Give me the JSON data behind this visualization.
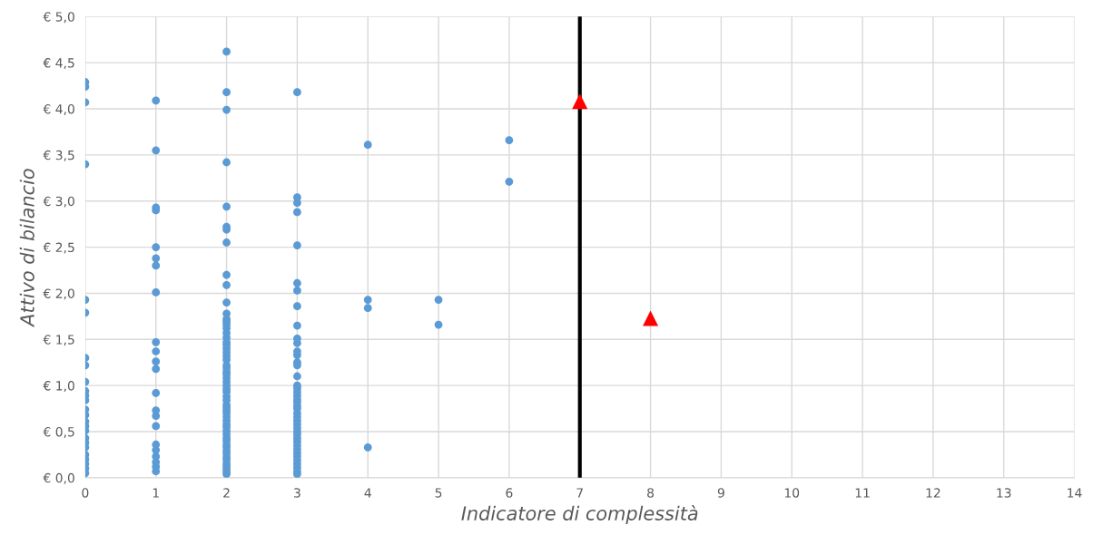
{
  "chart_data": {
    "type": "scatter",
    "xlabel": "Indicatore di complessità",
    "ylabel": "Attivo di bilancio",
    "xlim": [
      0,
      14
    ],
    "xticks": [
      0,
      1,
      2,
      3,
      4,
      5,
      6,
      7,
      8,
      9,
      10,
      11,
      12,
      13,
      14
    ],
    "ylim": [
      0,
      5
    ],
    "yticks": [
      {
        "value": 0,
        "label": "€ 0,0"
      },
      {
        "value": 0.5,
        "label": "€ 0,5"
      },
      {
        "value": 1,
        "label": "€ 1,0"
      },
      {
        "value": 1.5,
        "label": "€ 1,5"
      },
      {
        "value": 2,
        "label": "€ 2,0"
      },
      {
        "value": 2.5,
        "label": "€ 2,5"
      },
      {
        "value": 3,
        "label": "€ 3,0"
      },
      {
        "value": 3.5,
        "label": "€ 3,5"
      },
      {
        "value": 4,
        "label": "€ 4,0"
      },
      {
        "value": 4.5,
        "label": "€ 4,5"
      },
      {
        "value": 5,
        "label": "€ 5,0"
      }
    ],
    "grid": true,
    "legend": false,
    "ref_lines": [
      {
        "axis": "x",
        "value": 7,
        "label": null,
        "color": "#000000"
      }
    ],
    "series": [
      {
        "color": "#5b9bd5",
        "marker": "circle",
        "x": [
          0,
          0,
          0,
          0,
          0,
          0,
          0,
          0,
          0,
          0,
          0,
          0,
          0,
          0,
          0,
          0,
          0,
          0,
          0,
          0,
          0,
          0,
          0,
          0,
          0,
          1,
          1,
          1,
          1,
          1,
          1,
          1,
          1,
          1,
          1,
          1,
          1,
          1,
          1,
          1,
          1,
          1,
          1,
          1,
          1,
          1,
          1,
          2,
          2,
          2,
          2,
          2,
          2,
          2,
          2,
          2,
          2,
          2,
          2,
          2,
          2,
          2,
          2,
          2,
          2,
          2,
          2,
          2,
          2,
          2,
          2,
          2,
          2,
          2,
          2,
          2,
          2,
          2,
          2,
          2,
          2,
          2,
          2,
          2,
          2,
          2,
          2,
          2,
          2,
          2,
          2,
          2,
          2,
          2,
          2,
          2,
          2,
          2,
          2,
          2,
          2,
          2,
          2,
          2,
          2,
          3,
          3,
          3,
          3,
          3,
          3,
          3,
          3,
          3,
          3,
          3,
          3,
          3,
          3,
          3,
          3,
          3,
          3,
          3,
          3,
          3,
          3,
          3,
          3,
          3,
          3,
          3,
          3,
          3,
          3,
          3,
          3,
          3,
          3,
          3,
          3,
          3,
          3,
          3,
          3,
          3,
          3,
          4,
          4,
          4,
          4,
          5,
          5,
          6,
          6
        ],
        "values": [
          4.29,
          4.24,
          4.07,
          3.4,
          1.93,
          1.79,
          1.3,
          1.22,
          1.04,
          0.94,
          0.89,
          0.84,
          0.74,
          0.68,
          0.61,
          0.56,
          0.51,
          0.43,
          0.38,
          0.33,
          0.25,
          0.2,
          0.15,
          0.1,
          0.05,
          4.09,
          3.55,
          2.93,
          2.9,
          2.5,
          2.38,
          2.3,
          2.01,
          1.47,
          1.37,
          1.26,
          1.18,
          0.92,
          0.73,
          0.67,
          0.56,
          0.36,
          0.3,
          0.23,
          0.17,
          0.12,
          0.07,
          4.62,
          4.18,
          3.99,
          3.42,
          2.94,
          2.72,
          2.69,
          2.55,
          2.2,
          2.09,
          1.9,
          1.78,
          1.72,
          1.69,
          1.66,
          1.62,
          1.57,
          1.52,
          1.47,
          1.44,
          1.4,
          1.36,
          1.32,
          1.28,
          1.22,
          1.19,
          1.15,
          1.12,
          1.08,
          1.04,
          1.0,
          0.96,
          0.93,
          0.88,
          0.84,
          0.79,
          0.76,
          0.73,
          0.7,
          0.66,
          0.62,
          0.58,
          0.55,
          0.51,
          0.47,
          0.43,
          0.4,
          0.36,
          0.33,
          0.29,
          0.26,
          0.22,
          0.19,
          0.15,
          0.12,
          0.09,
          0.06,
          0.04,
          4.18,
          3.04,
          2.98,
          2.88,
          2.52,
          2.11,
          2.03,
          1.86,
          1.65,
          1.51,
          1.46,
          1.37,
          1.33,
          1.25,
          1.22,
          1.1,
          1.0,
          0.97,
          0.93,
          0.89,
          0.85,
          0.82,
          0.78,
          0.75,
          0.7,
          0.66,
          0.62,
          0.58,
          0.54,
          0.5,
          0.47,
          0.43,
          0.39,
          0.35,
          0.31,
          0.27,
          0.23,
          0.19,
          0.15,
          0.11,
          0.07,
          0.04,
          3.61,
          1.93,
          1.84,
          0.33,
          1.93,
          1.66,
          3.66,
          3.21
        ]
      },
      {
        "color": "#ff0000",
        "marker": "triangle",
        "x": [
          7,
          8
        ],
        "values": [
          4.08,
          1.73
        ]
      }
    ]
  }
}
